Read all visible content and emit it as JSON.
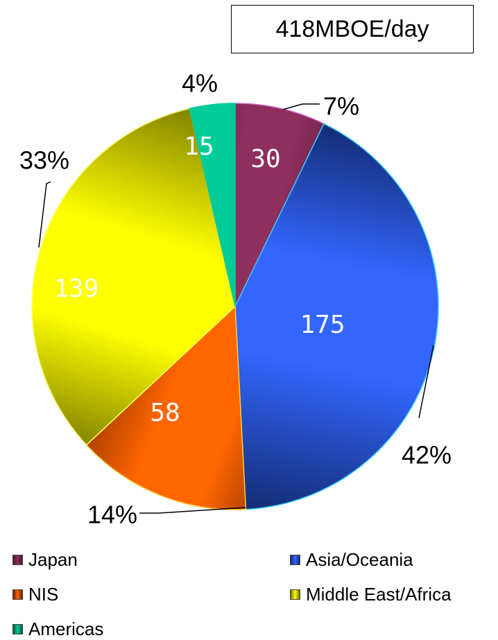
{
  "chart_data": {
    "type": "pie",
    "title": "418MBOE/day",
    "slices": [
      {
        "label": "Japan",
        "value": 30,
        "percent": "7%",
        "color": "#8e2f5e",
        "color_dark": "#4a1530",
        "edge": "#cc66cc"
      },
      {
        "label": "Asia/Oceania",
        "value": 175,
        "percent": "42%",
        "color": "#3366ff",
        "color_dark": "#122a6e",
        "edge": "#33ccff"
      },
      {
        "label": "NIS",
        "value": 58,
        "percent": "14%",
        "color": "#ff6600",
        "color_dark": "#6e2200",
        "edge": "#ffcc33"
      },
      {
        "label": "Middle East/Africa",
        "value": 139,
        "percent": "33%",
        "color": "#ffff00",
        "color_dark": "#6e6e00",
        "edge": "#ffff66"
      },
      {
        "label": "Americas",
        "value": 15,
        "percent": "4%",
        "color": "#00cc99",
        "color_dark": "#005544",
        "edge": "#00cc99"
      }
    ],
    "start_angle_deg": 0,
    "direction": "clockwise",
    "legend_position": "bottom"
  }
}
